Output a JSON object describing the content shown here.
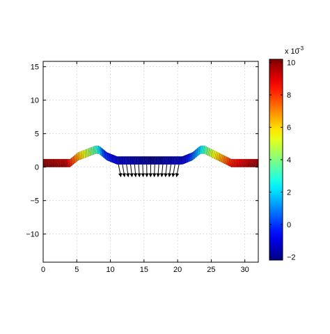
{
  "chart_data": {
    "type": "heatmap",
    "description_free": true,
    "xlim": [
      0,
      32
    ],
    "ylim": [
      -14.2,
      15.8
    ],
    "xticks": [
      0,
      5,
      10,
      15,
      20,
      25,
      30
    ],
    "xtick_labels": [
      "0",
      "5",
      "10",
      "15",
      "20",
      "25",
      "30"
    ],
    "yticks": [
      15,
      10,
      5,
      0,
      -5,
      -10
    ],
    "ytick_labels": [
      "15",
      "10",
      "5",
      "0",
      "−5",
      "−10"
    ],
    "grid": true,
    "colorbar": {
      "range": [
        -2.2,
        10.2
      ],
      "ticks": [
        10,
        8,
        6,
        4,
        2,
        0,
        -2
      ],
      "tick_labels": [
        "10",
        "8",
        "6",
        "4",
        "2",
        "0",
        "−2"
      ],
      "exponent_label": "x 10",
      "exponent_power": "−3",
      "colormap": "jet"
    },
    "mesh": {
      "thickness": 1.2,
      "profile": [
        [
          0,
          0
        ],
        [
          4,
          0
        ],
        [
          5.2,
          1.0
        ],
        [
          7.8,
          2.0
        ],
        [
          8.3,
          2.0
        ],
        [
          9.5,
          1.0
        ],
        [
          11,
          0.4
        ],
        [
          20.7,
          0.4
        ],
        [
          22.2,
          1.0
        ],
        [
          23.4,
          2.0
        ],
        [
          24,
          2.0
        ],
        [
          28,
          0
        ],
        [
          32,
          0
        ]
      ],
      "value_profile": [
        [
          0,
          10
        ],
        [
          3.5,
          9.5
        ],
        [
          4.2,
          8
        ],
        [
          6,
          5.5
        ],
        [
          8,
          3
        ],
        [
          9,
          0
        ],
        [
          11,
          -1.2
        ],
        [
          16,
          -2
        ],
        [
          21,
          -1.2
        ],
        [
          23,
          1.5
        ],
        [
          25,
          5
        ],
        [
          28,
          8.5
        ],
        [
          32,
          10
        ]
      ]
    },
    "arrows": {
      "count": 16,
      "x_start": 11.2,
      "x_end": 20.2,
      "base_y": 0.4,
      "tip_y": -1.4,
      "tip_x_shift": [
        0.6,
        0,
        -0.6
      ]
    }
  }
}
